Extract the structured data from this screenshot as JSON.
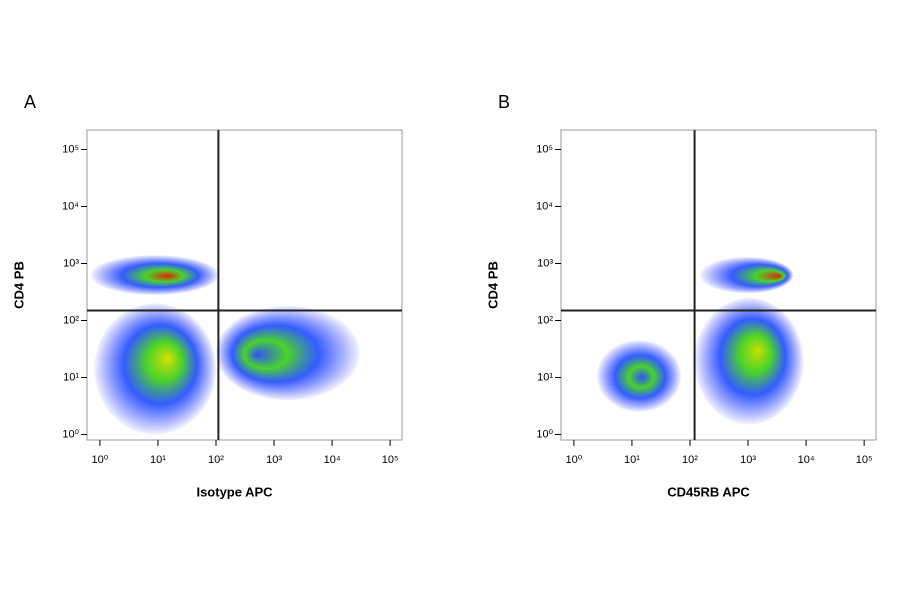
{
  "chart_data": [
    {
      "type": "density",
      "panel_label": "A",
      "x_label": "Isotype APC",
      "y_label": "CD4 PB",
      "log_x": true,
      "log_y": true,
      "xlim": [
        0.6,
        160000
      ],
      "ylim": [
        0.8,
        220000
      ],
      "xticks": [
        {
          "value": 1,
          "label": "10⁰"
        },
        {
          "value": 10,
          "label": "10¹"
        },
        {
          "value": 100,
          "label": "10²"
        },
        {
          "value": 1000,
          "label": "10³"
        },
        {
          "value": 10000,
          "label": "10⁴"
        },
        {
          "value": 100000,
          "label": "10⁵"
        }
      ],
      "yticks": [
        {
          "value": 1,
          "label": "10⁰"
        },
        {
          "value": 10,
          "label": "10¹"
        },
        {
          "value": 100,
          "label": "10²"
        },
        {
          "value": 1000,
          "label": "10³"
        },
        {
          "value": 10000,
          "label": "10⁴"
        },
        {
          "value": 100000,
          "label": "10⁵"
        }
      ],
      "gates": {
        "x": 110,
        "y": 150
      },
      "populations": [
        {
          "x": 15,
          "y": 600,
          "x_range": [
            0.7,
            110
          ],
          "y_range": [
            280,
            1400
          ],
          "peak": "#e8200c"
        },
        {
          "x": 15,
          "y": 22,
          "x_range": [
            0.8,
            100
          ],
          "y_range": [
            1,
            200
          ],
          "peak": "#d8e000"
        },
        {
          "x": 500,
          "y": 25,
          "x_range": [
            100,
            30000
          ],
          "y_range": [
            4,
            180
          ],
          "peak": "#3050ff"
        }
      ]
    },
    {
      "type": "density",
      "panel_label": "B",
      "x_label": "CD45RB APC",
      "y_label": "CD4 PB",
      "log_x": true,
      "log_y": true,
      "xlim": [
        0.6,
        160000
      ],
      "ylim": [
        0.8,
        220000
      ],
      "xticks": [
        {
          "value": 1,
          "label": "10⁰"
        },
        {
          "value": 10,
          "label": "10¹"
        },
        {
          "value": 100,
          "label": "10²"
        },
        {
          "value": 1000,
          "label": "10³"
        },
        {
          "value": 10000,
          "label": "10⁴"
        },
        {
          "value": 100000,
          "label": "10⁵"
        }
      ],
      "yticks": [
        {
          "value": 1,
          "label": "10⁰"
        },
        {
          "value": 10,
          "label": "10¹"
        },
        {
          "value": 100,
          "label": "10²"
        },
        {
          "value": 1000,
          "label": "10³"
        },
        {
          "value": 10000,
          "label": "10⁴"
        },
        {
          "value": 100000,
          "label": "10⁵"
        }
      ],
      "gates": {
        "x": 120,
        "y": 150
      },
      "populations": [
        {
          "x": 3500,
          "y": 600,
          "x_range": [
            150,
            6000
          ],
          "y_range": [
            300,
            1300
          ],
          "peak": "#e8200c"
        },
        {
          "x": 1500,
          "y": 30,
          "x_range": [
            120,
            9000
          ],
          "y_range": [
            1.5,
            250
          ],
          "peak": "#c8e000"
        },
        {
          "x": 15,
          "y": 10,
          "x_range": [
            2.5,
            70
          ],
          "y_range": [
            2.5,
            45
          ],
          "peak": "#3050ff"
        }
      ]
    }
  ]
}
